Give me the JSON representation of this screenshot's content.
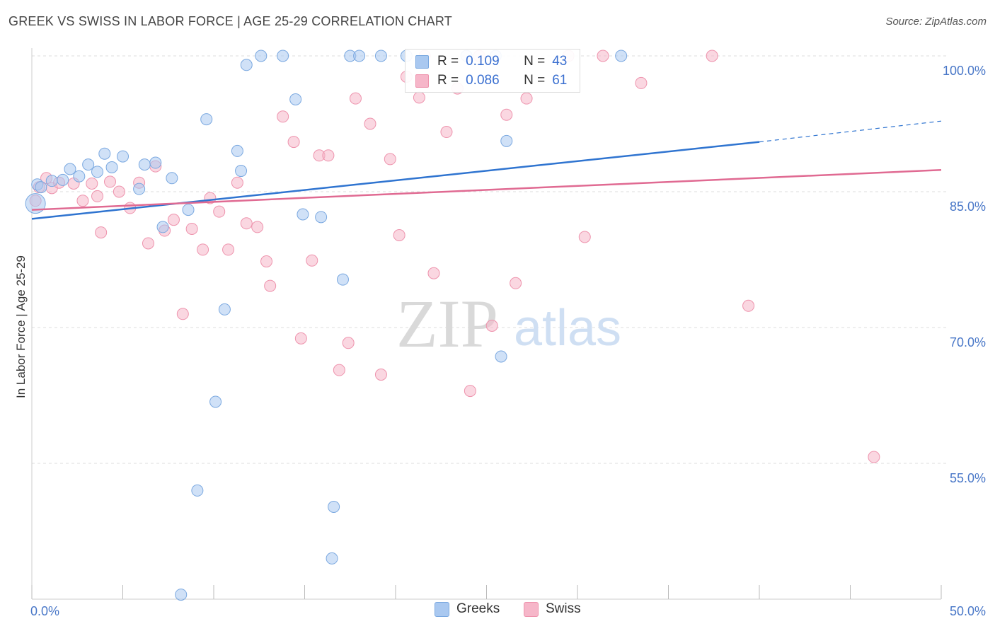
{
  "title": "GREEK VS SWISS IN LABOR FORCE | AGE 25-29 CORRELATION CHART",
  "source": "Source: ZipAtlas.com",
  "watermark": {
    "zip": "ZIP",
    "atlas": "atlas"
  },
  "legend": {
    "rows": [
      {
        "r_label": "R =",
        "r_value": "0.109",
        "n_label": "N =",
        "n_value": "43"
      },
      {
        "r_label": "R =",
        "r_value": "0.086",
        "n_label": "N =",
        "n_value": "61"
      }
    ]
  },
  "bottom_legend": {
    "greeks": "Greeks",
    "swiss": "Swiss"
  },
  "colors": {
    "greeks_fill": "#a9c8f0",
    "greeks_stroke": "#7aa8e0",
    "greeks_line": "#2f74d0",
    "swiss_fill": "#f6b6c9",
    "swiss_stroke": "#ee93ad",
    "swiss_line": "#e06a92",
    "grid": "#dddddd",
    "tick_text": "#4a78c8"
  },
  "chart_data": {
    "type": "scatter",
    "title": "GREEK VS SWISS IN LABOR FORCE | AGE 25-29 CORRELATION CHART",
    "xlabel": "",
    "ylabel": "In Labor Force | Age 25-29",
    "xlim": [
      0,
      50
    ],
    "ylim": [
      40.5,
      101.5
    ],
    "x_tick_labels": [
      "0.0%",
      "50.0%"
    ],
    "y_ticks": [
      55,
      70,
      85,
      100
    ],
    "y_tick_labels": [
      "55.0%",
      "70.0%",
      "85.0%",
      "100.0%"
    ],
    "grid": true,
    "legend_position": "top-center",
    "series": [
      {
        "name": "Greeks",
        "r": 0.109,
        "n": 43,
        "trend": {
          "x0": 0,
          "y0": 82.0,
          "x1": 40,
          "y1": 90.5,
          "dashed_to_x": 50,
          "dashed_to_y": 92.8
        },
        "points": [
          [
            0.3,
            85.8
          ],
          [
            0.5,
            85.5
          ],
          [
            1.1,
            86.2
          ],
          [
            1.7,
            86.3
          ],
          [
            2.1,
            87.5
          ],
          [
            2.6,
            86.7
          ],
          [
            3.1,
            88.0
          ],
          [
            3.6,
            87.2
          ],
          [
            4.0,
            89.2
          ],
          [
            4.4,
            87.7
          ],
          [
            5.0,
            88.9
          ],
          [
            5.9,
            85.3
          ],
          [
            6.2,
            88.0
          ],
          [
            6.8,
            88.2
          ],
          [
            7.2,
            81.1
          ],
          [
            7.7,
            86.5
          ],
          [
            8.2,
            40.5
          ],
          [
            8.6,
            83.0
          ],
          [
            9.1,
            52.0
          ],
          [
            9.6,
            93.0
          ],
          [
            10.1,
            61.8
          ],
          [
            10.6,
            72.0
          ],
          [
            11.3,
            89.5
          ],
          [
            11.5,
            87.3
          ],
          [
            11.8,
            99.0
          ],
          [
            12.6,
            100.0
          ],
          [
            13.8,
            100.0
          ],
          [
            14.5,
            95.2
          ],
          [
            14.9,
            82.5
          ],
          [
            15.9,
            82.2
          ],
          [
            16.5,
            44.5
          ],
          [
            16.6,
            50.2
          ],
          [
            17.1,
            75.3
          ],
          [
            17.5,
            100.0
          ],
          [
            18.0,
            100.0
          ],
          [
            19.2,
            100.0
          ],
          [
            20.6,
            100.0
          ],
          [
            23.9,
            100.0
          ],
          [
            25.5,
            100.0
          ],
          [
            25.8,
            66.8
          ],
          [
            26.1,
            90.6
          ],
          [
            32.4,
            100.0
          ],
          [
            0.2,
            83.7
          ]
        ]
      },
      {
        "name": "Swiss",
        "r": 0.086,
        "n": 61,
        "trend": {
          "x0": 0,
          "y0": 83.0,
          "x1": 50,
          "y1": 87.4
        },
        "points": [
          [
            0.2,
            84.0
          ],
          [
            0.4,
            85.5
          ],
          [
            1.1,
            85.4
          ],
          [
            1.5,
            86.0
          ],
          [
            2.3,
            85.9
          ],
          [
            2.8,
            84.0
          ],
          [
            3.3,
            85.9
          ],
          [
            3.8,
            80.5
          ],
          [
            4.3,
            86.1
          ],
          [
            4.8,
            85.0
          ],
          [
            5.4,
            83.2
          ],
          [
            5.9,
            86.0
          ],
          [
            6.4,
            79.3
          ],
          [
            6.8,
            87.8
          ],
          [
            7.3,
            80.7
          ],
          [
            7.8,
            81.9
          ],
          [
            8.3,
            71.5
          ],
          [
            8.8,
            80.9
          ],
          [
            9.4,
            78.6
          ],
          [
            9.8,
            84.3
          ],
          [
            10.3,
            82.8
          ],
          [
            10.8,
            78.6
          ],
          [
            11.3,
            86.0
          ],
          [
            11.8,
            81.5
          ],
          [
            12.4,
            81.1
          ],
          [
            12.9,
            77.3
          ],
          [
            13.1,
            74.6
          ],
          [
            13.8,
            93.3
          ],
          [
            14.4,
            90.5
          ],
          [
            14.8,
            68.8
          ],
          [
            15.4,
            77.4
          ],
          [
            15.8,
            89.0
          ],
          [
            16.3,
            89.0
          ],
          [
            16.9,
            65.3
          ],
          [
            17.4,
            68.3
          ],
          [
            17.8,
            95.3
          ],
          [
            18.6,
            92.5
          ],
          [
            19.2,
            64.8
          ],
          [
            19.7,
            88.6
          ],
          [
            20.2,
            80.2
          ],
          [
            20.6,
            97.7
          ],
          [
            21.3,
            95.4
          ],
          [
            21.6,
            100.0
          ],
          [
            22.1,
            76.0
          ],
          [
            22.8,
            91.6
          ],
          [
            23.4,
            96.4
          ],
          [
            24.1,
            63.0
          ],
          [
            24.6,
            100.0
          ],
          [
            25.3,
            70.2
          ],
          [
            26.1,
            93.5
          ],
          [
            26.6,
            74.9
          ],
          [
            27.2,
            95.3
          ],
          [
            29.5,
            100.0
          ],
          [
            30.4,
            80.0
          ],
          [
            31.4,
            100.0
          ],
          [
            33.5,
            97.0
          ],
          [
            37.4,
            100.0
          ],
          [
            39.4,
            72.4
          ],
          [
            46.3,
            55.7
          ],
          [
            0.8,
            86.5
          ],
          [
            3.6,
            84.5
          ]
        ]
      }
    ]
  }
}
